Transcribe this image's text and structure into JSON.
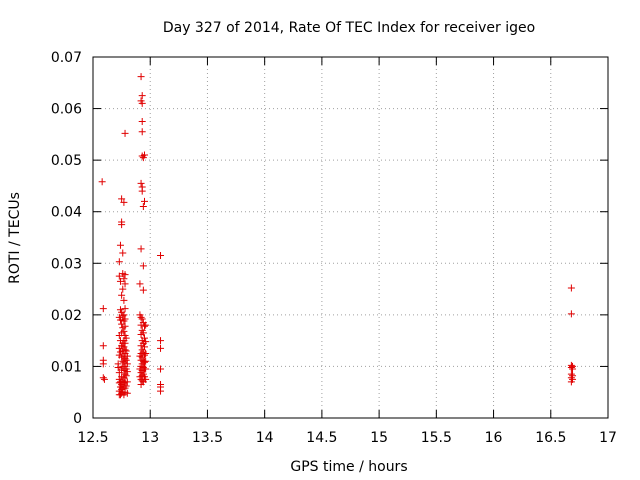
{
  "chart_data": {
    "type": "scatter",
    "title": "Day 327 of 2014, Rate Of TEC Index for receiver igeo",
    "xlabel": "GPS time / hours",
    "ylabel": "ROTI / TECUs",
    "xlim": [
      12.5,
      17
    ],
    "ylim": [
      0,
      0.07
    ],
    "x_ticks": [
      "12.5",
      "13",
      "13.5",
      "14",
      "14.5",
      "15",
      "15.5",
      "16",
      "16.5",
      "17"
    ],
    "y_ticks": [
      "0",
      "0.01",
      "0.02",
      "0.03",
      "0.04",
      "0.05",
      "0.06",
      "0.07"
    ],
    "grid": true,
    "legend": "none",
    "marker": "plus",
    "color": "#e00000",
    "points": [
      [
        12.58,
        0.0458
      ],
      [
        12.59,
        0.0212
      ],
      [
        12.59,
        0.014
      ],
      [
        12.59,
        0.0112
      ],
      [
        12.59,
        0.0105
      ],
      [
        12.59,
        0.0078
      ],
      [
        12.6,
        0.0075
      ],
      [
        12.72,
        0.0105
      ],
      [
        12.72,
        0.0098
      ],
      [
        12.73,
        0.0303
      ],
      [
        12.73,
        0.0275
      ],
      [
        12.73,
        0.0195
      ],
      [
        12.73,
        0.016
      ],
      [
        12.73,
        0.0135
      ],
      [
        12.73,
        0.0122
      ],
      [
        12.73,
        0.0088
      ],
      [
        12.73,
        0.0075
      ],
      [
        12.73,
        0.0068
      ],
      [
        12.73,
        0.0052
      ],
      [
        12.73,
        0.0045
      ],
      [
        12.74,
        0.0335
      ],
      [
        12.74,
        0.0265
      ],
      [
        12.74,
        0.021
      ],
      [
        12.74,
        0.019
      ],
      [
        12.74,
        0.015
      ],
      [
        12.74,
        0.0128
      ],
      [
        12.74,
        0.007
      ],
      [
        12.74,
        0.006
      ],
      [
        12.74,
        0.0045
      ],
      [
        12.75,
        0.0425
      ],
      [
        12.75,
        0.038
      ],
      [
        12.75,
        0.0375
      ],
      [
        12.75,
        0.0238
      ],
      [
        12.75,
        0.0205
      ],
      [
        12.75,
        0.0182
      ],
      [
        12.75,
        0.0165
      ],
      [
        12.75,
        0.014
      ],
      [
        12.75,
        0.0118
      ],
      [
        12.75,
        0.0095
      ],
      [
        12.75,
        0.008
      ],
      [
        12.75,
        0.0065
      ],
      [
        12.75,
        0.0055
      ],
      [
        12.75,
        0.0048
      ],
      [
        12.76,
        0.032
      ],
      [
        12.76,
        0.028
      ],
      [
        12.76,
        0.025
      ],
      [
        12.76,
        0.0198
      ],
      [
        12.76,
        0.0175
      ],
      [
        12.76,
        0.0145
      ],
      [
        12.76,
        0.013
      ],
      [
        12.76,
        0.011
      ],
      [
        12.76,
        0.01
      ],
      [
        12.76,
        0.0072
      ],
      [
        12.76,
        0.0058
      ],
      [
        12.76,
        0.005
      ],
      [
        12.77,
        0.0418
      ],
      [
        12.77,
        0.027
      ],
      [
        12.77,
        0.0228
      ],
      [
        12.77,
        0.02
      ],
      [
        12.77,
        0.0188
      ],
      [
        12.77,
        0.0168
      ],
      [
        12.77,
        0.015
      ],
      [
        12.77,
        0.0138
      ],
      [
        12.77,
        0.012
      ],
      [
        12.77,
        0.0108
      ],
      [
        12.77,
        0.0092
      ],
      [
        12.77,
        0.0078
      ],
      [
        12.77,
        0.0068
      ],
      [
        12.77,
        0.0062
      ],
      [
        12.77,
        0.0045
      ],
      [
        12.78,
        0.0552
      ],
      [
        12.78,
        0.0278
      ],
      [
        12.78,
        0.026
      ],
      [
        12.78,
        0.0212
      ],
      [
        12.78,
        0.0192
      ],
      [
        12.78,
        0.0178
      ],
      [
        12.78,
        0.016
      ],
      [
        12.78,
        0.0145
      ],
      [
        12.78,
        0.0132
      ],
      [
        12.78,
        0.0125
      ],
      [
        12.78,
        0.0115
      ],
      [
        12.78,
        0.01
      ],
      [
        12.78,
        0.0085
      ],
      [
        12.78,
        0.007
      ],
      [
        12.78,
        0.0058
      ],
      [
        12.78,
        0.005
      ],
      [
        12.79,
        0.0155
      ],
      [
        12.79,
        0.013
      ],
      [
        12.79,
        0.0112
      ],
      [
        12.79,
        0.0095
      ],
      [
        12.79,
        0.0082
      ],
      [
        12.79,
        0.0062
      ],
      [
        12.8,
        0.012
      ],
      [
        12.8,
        0.0105
      ],
      [
        12.8,
        0.009
      ],
      [
        12.8,
        0.007
      ],
      [
        12.8,
        0.0048
      ],
      [
        12.91,
        0.026
      ],
      [
        12.91,
        0.02
      ],
      [
        12.91,
        0.012
      ],
      [
        12.91,
        0.0095
      ],
      [
        12.91,
        0.008
      ],
      [
        12.92,
        0.0662
      ],
      [
        12.92,
        0.0615
      ],
      [
        12.92,
        0.0455
      ],
      [
        12.92,
        0.0328
      ],
      [
        12.92,
        0.0195
      ],
      [
        12.92,
        0.018
      ],
      [
        12.92,
        0.0162
      ],
      [
        12.92,
        0.014
      ],
      [
        12.92,
        0.0125
      ],
      [
        12.92,
        0.0112
      ],
      [
        12.92,
        0.01
      ],
      [
        12.92,
        0.0088
      ],
      [
        12.92,
        0.0075
      ],
      [
        12.92,
        0.0065
      ],
      [
        12.93,
        0.0625
      ],
      [
        12.93,
        0.061
      ],
      [
        12.93,
        0.0575
      ],
      [
        12.93,
        0.0555
      ],
      [
        12.93,
        0.0508
      ],
      [
        12.93,
        0.0448
      ],
      [
        12.93,
        0.044
      ],
      [
        12.93,
        0.0192
      ],
      [
        12.93,
        0.017
      ],
      [
        12.93,
        0.015
      ],
      [
        12.93,
        0.0132
      ],
      [
        12.93,
        0.0118
      ],
      [
        12.93,
        0.0105
      ],
      [
        12.93,
        0.0092
      ],
      [
        12.93,
        0.0082
      ],
      [
        12.93,
        0.0072
      ],
      [
        12.94,
        0.0505
      ],
      [
        12.94,
        0.041
      ],
      [
        12.94,
        0.0295
      ],
      [
        12.94,
        0.0248
      ],
      [
        12.94,
        0.0185
      ],
      [
        12.94,
        0.0165
      ],
      [
        12.94,
        0.0145
      ],
      [
        12.94,
        0.0128
      ],
      [
        12.94,
        0.011
      ],
      [
        12.94,
        0.0098
      ],
      [
        12.94,
        0.0085
      ],
      [
        12.94,
        0.007
      ],
      [
        12.95,
        0.051
      ],
      [
        12.95,
        0.042
      ],
      [
        12.95,
        0.0178
      ],
      [
        12.95,
        0.0155
      ],
      [
        12.95,
        0.0138
      ],
      [
        12.95,
        0.0122
      ],
      [
        12.95,
        0.0108
      ],
      [
        12.95,
        0.0095
      ],
      [
        12.95,
        0.008
      ],
      [
        12.96,
        0.018
      ],
      [
        12.96,
        0.0148
      ],
      [
        12.96,
        0.0125
      ],
      [
        12.96,
        0.011
      ],
      [
        12.96,
        0.0095
      ],
      [
        12.96,
        0.0075
      ],
      [
        13.09,
        0.0315
      ],
      [
        13.09,
        0.015
      ],
      [
        13.09,
        0.0135
      ],
      [
        13.09,
        0.0095
      ],
      [
        13.09,
        0.0065
      ],
      [
        13.09,
        0.006
      ],
      [
        13.09,
        0.0052
      ],
      [
        16.68,
        0.0252
      ],
      [
        16.68,
        0.0202
      ],
      [
        16.68,
        0.0102
      ],
      [
        16.68,
        0.0098
      ],
      [
        16.68,
        0.0085
      ],
      [
        16.68,
        0.0078
      ],
      [
        16.68,
        0.007
      ],
      [
        16.69,
        0.01
      ],
      [
        16.69,
        0.0095
      ],
      [
        16.69,
        0.0082
      ],
      [
        16.69,
        0.0075
      ]
    ]
  }
}
